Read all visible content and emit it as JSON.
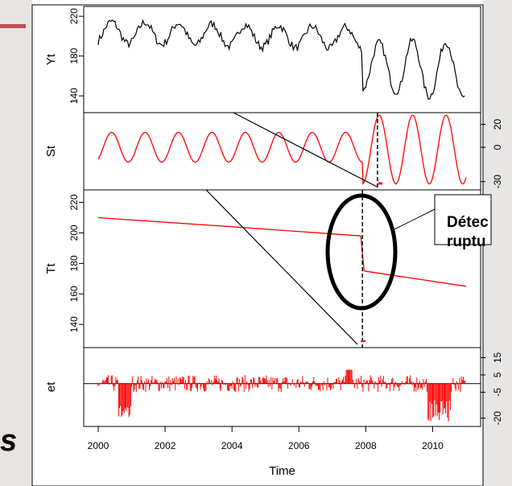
{
  "colors": {
    "background_left": "#e7e4e2",
    "background_right": "#e8e6e4",
    "accent_bar": "#c0504d",
    "trend_series": "#000000",
    "component_series": "#ff0000",
    "callout_ellipse": "#000000"
  },
  "slide": {
    "left_fragment": "s"
  },
  "callout": {
    "line1": "Détec",
    "line2": "ruptu"
  },
  "chart_data": {
    "type": "line",
    "xlabel": "Time",
    "x_ticks": [
      "2000",
      "2002",
      "2004",
      "2006",
      "2008",
      "2010"
    ],
    "xlim": [
      2000,
      2011
    ],
    "break_point": 2007.9,
    "grid": false,
    "panels": [
      {
        "name": "Yt",
        "ylabel": "Yt",
        "left_ticks": [
          "140",
          "180",
          "220"
        ],
        "ylim": [
          128,
          225
        ],
        "color": "#000000",
        "summary": {
          "pre_break_range": [
            185,
            222
          ],
          "post_break_range": [
            130,
            200
          ],
          "start": 195,
          "end": 171
        }
      },
      {
        "name": "St",
        "ylabel": "St",
        "right_ticks": [
          "20",
          "0",
          "-30"
        ],
        "ylim": [
          -33,
          26
        ],
        "color": "#ff0000",
        "summary": {
          "amplitude_before": 13,
          "amplitude_after": 30,
          "period_years": 1
        }
      },
      {
        "name": "Tt",
        "ylabel": "Tt",
        "left_ticks": [
          "140",
          "160",
          "180",
          "200",
          "220"
        ],
        "ylim": [
          128,
          225
        ],
        "color": "#ff0000",
        "values": [
          {
            "x": 2000.0,
            "y": 210
          },
          {
            "x": 2004.0,
            "y": 204
          },
          {
            "x": 2007.85,
            "y": 198
          },
          {
            "x": 2007.95,
            "y": 175
          },
          {
            "x": 2011.0,
            "y": 165
          }
        ]
      },
      {
        "name": "et",
        "ylabel": "et",
        "right_ticks": [
          "15",
          "5",
          "-5",
          "-20"
        ],
        "ylim": [
          -22,
          18
        ],
        "color": "#ff0000",
        "summary": {
          "typical_range": [
            -8,
            8
          ],
          "min_near": [
            [
              2000.8,
              -21
            ],
            [
              2010.2,
              -22
            ]
          ]
        }
      }
    ]
  }
}
